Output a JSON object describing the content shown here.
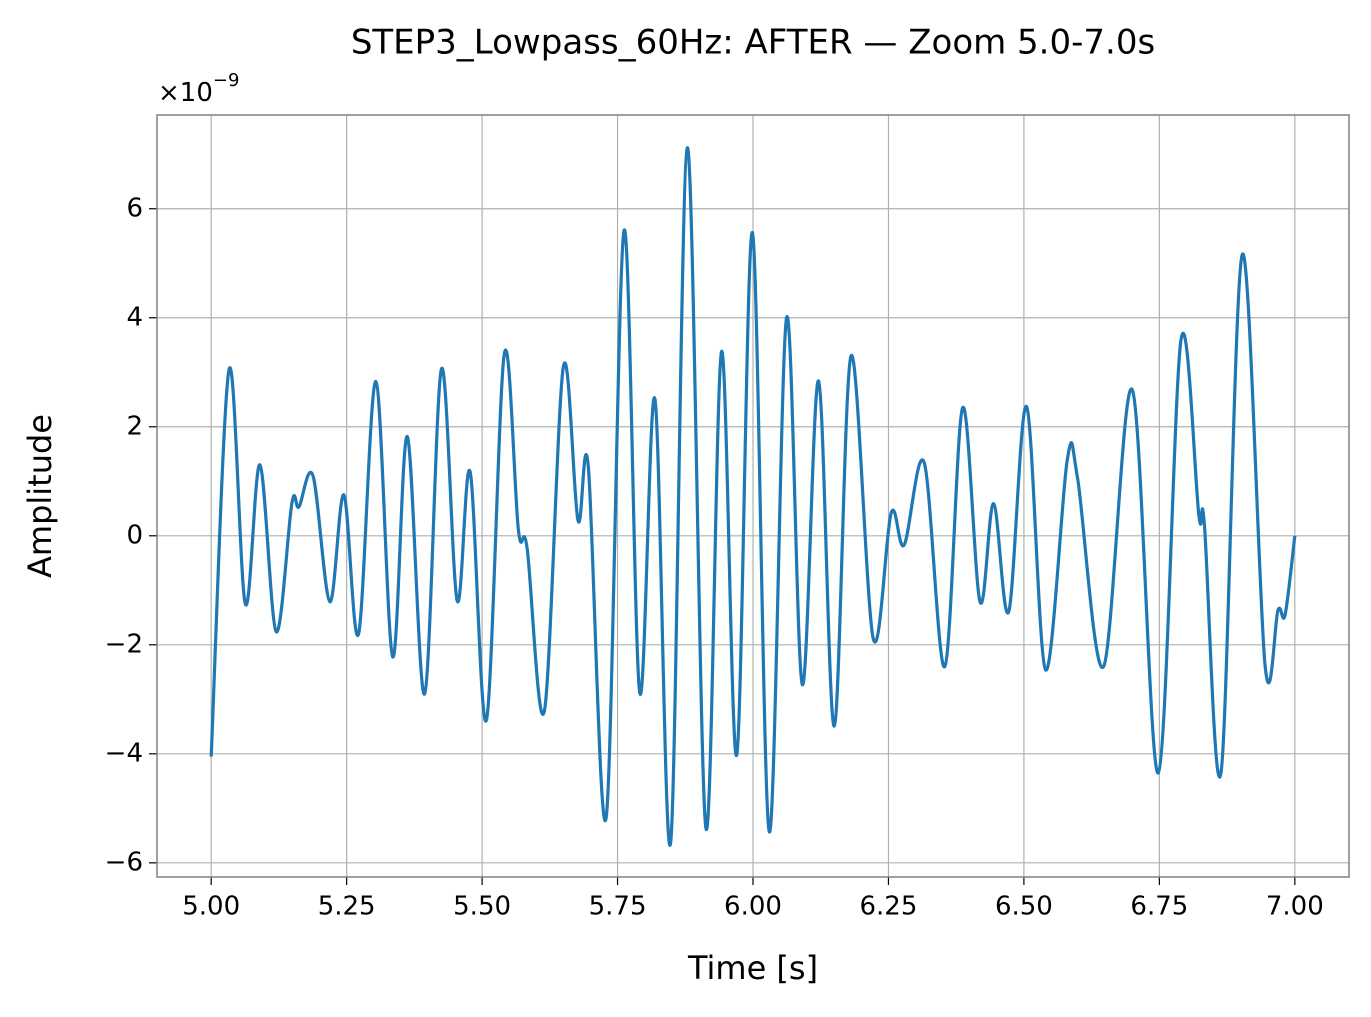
{
  "chart_data": {
    "type": "line",
    "title": "STEP3_Lowpass_60Hz: AFTER — Zoom 5.0-7.0s",
    "x_label": "Time [s]",
    "y_label": "Amplitude",
    "y_offset_base": "×10",
    "y_offset_exponent": "−9",
    "color": "#1f77b4",
    "grid": true,
    "xlim": [
      4.9,
      7.1
    ],
    "ylim": [
      -6.26,
      7.72
    ],
    "xticks": [
      {
        "value": 5.0,
        "label": "5.00"
      },
      {
        "value": 5.25,
        "label": "5.25"
      },
      {
        "value": 5.5,
        "label": "5.50"
      },
      {
        "value": 5.75,
        "label": "5.75"
      },
      {
        "value": 6.0,
        "label": "6.00"
      },
      {
        "value": 6.25,
        "label": "6.25"
      },
      {
        "value": 6.5,
        "label": "6.50"
      },
      {
        "value": 6.75,
        "label": "6.75"
      },
      {
        "value": 7.0,
        "label": "7.00"
      }
    ],
    "yticks": [
      {
        "value": -6,
        "label": "−6"
      },
      {
        "value": -4,
        "label": "−4"
      },
      {
        "value": -2,
        "label": "−2"
      },
      0,
      2,
      4,
      6
    ],
    "x": [
      5.0,
      5.033,
      5.063,
      5.09,
      5.12,
      5.149,
      5.162,
      5.188,
      5.219,
      5.245,
      5.272,
      5.304,
      5.335,
      5.362,
      5.394,
      5.425,
      5.454,
      5.478,
      5.508,
      5.541,
      5.567,
      5.583,
      5.615,
      5.65,
      5.677,
      5.696,
      5.729,
      5.762,
      5.791,
      5.819,
      5.848,
      5.879,
      5.913,
      5.942,
      5.97,
      5.999,
      6.03,
      6.062,
      6.091,
      6.121,
      6.15,
      6.181,
      6.222,
      6.255,
      6.279,
      6.316,
      6.354,
      6.387,
      6.419,
      6.444,
      6.472,
      6.505,
      6.54,
      6.58,
      6.599,
      6.647,
      6.7,
      6.748,
      6.79,
      6.823,
      6.833,
      6.864,
      6.903,
      6.945,
      6.969,
      6.982,
      7.0
    ],
    "values": [
      -4.05,
      3.05,
      -1.25,
      1.3,
      -1.76,
      0.6,
      0.53,
      1.1,
      -1.21,
      0.75,
      -1.8,
      2.83,
      -2.22,
      1.82,
      -2.9,
      3.06,
      -1.19,
      1.17,
      -3.38,
      3.34,
      0.11,
      -0.22,
      -3.21,
      3.1,
      0.28,
      1.27,
      -5.17,
      5.6,
      -2.88,
      2.51,
      -5.63,
      7.12,
      -5.36,
      3.38,
      -4.02,
      5.56,
      -5.43,
      4.0,
      -2.73,
      2.84,
      -3.49,
      3.3,
      -1.89,
      0.42,
      -0.17,
      1.34,
      -2.4,
      2.35,
      -1.21,
      0.59,
      -1.39,
      2.37,
      -2.46,
      1.39,
      1.06,
      -2.4,
      2.68,
      -4.35,
      3.6,
      0.37,
      0.22,
      -4.33,
      5.16,
      -2.37,
      -1.36,
      -1.45,
      0.0
    ]
  }
}
